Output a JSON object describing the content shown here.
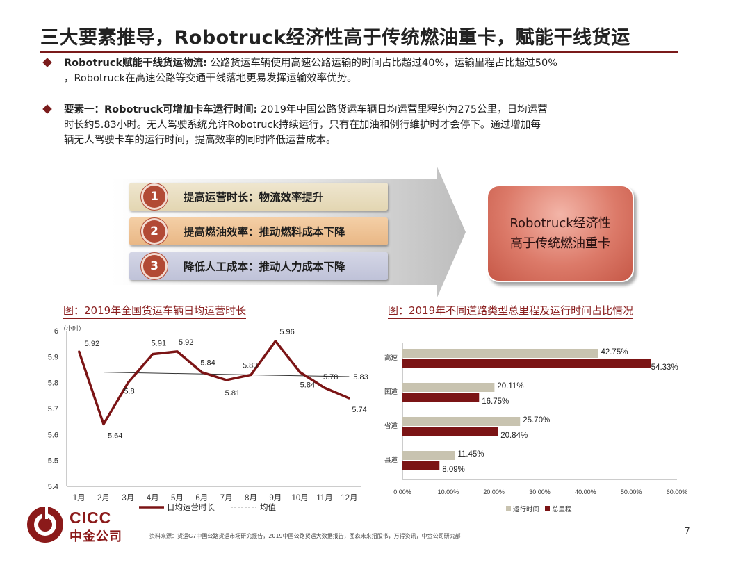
{
  "title": "三大要素推导，Robotruck经济性高于传统燃油重卡，赋能干线货运",
  "bullets": [
    {
      "lead": "Robotruck赋能干线货运物流:",
      "text_line1": " 公路货运车辆使用高速公路运输的时间占比超过40%，运输里程占比超过50%",
      "text_line2": "，Robotruck在高速公路等交通干线落地更易发挥运输效率优势。"
    },
    {
      "lead": "要素一：Robotruck可增加卡车运行时间:",
      "text_line1": " 2019年中国公路货运车辆日均运营里程约为275公里，日均运营",
      "text_line2": "时长约5.83小时。无人驾驶系统允许Robotruck持续运行，只有在加油和例行维护时才会停下。通过增加每",
      "text_line3": "辆无人驾驶卡车的运行时间，提高效率的同时降低运营成本。"
    }
  ],
  "factors": [
    {
      "num": "1",
      "label": "提高运营时长：物流效率提升"
    },
    {
      "num": "2",
      "label": "提高燃油效率：推动燃料成本下降"
    },
    {
      "num": "3",
      "label": "降低人工成本：推动人力成本下降"
    }
  ],
  "result": {
    "line1": "Robotruck经济性",
    "line2": "高于传统燃油重卡"
  },
  "left_chart_title": "图：2019年全国货运车辆日均运营时长",
  "right_chart_title": "图：2019年不同道路类型总里程及运行时间占比情况",
  "chart_data": [
    {
      "type": "line",
      "unit_label": "（小时）",
      "categories": [
        "1月",
        "2月",
        "3月",
        "4月",
        "5月",
        "6月",
        "7月",
        "8月",
        "9月",
        "10月",
        "11月",
        "12月"
      ],
      "series": [
        {
          "name": "日均运营时长",
          "color": "#7b1415",
          "values": [
            5.92,
            5.64,
            5.8,
            5.91,
            5.92,
            5.84,
            5.81,
            5.83,
            5.96,
            5.84,
            5.78,
            5.74
          ]
        },
        {
          "name": "均值",
          "color": "#a0a0a0",
          "values": [
            5.83,
            5.83,
            5.83,
            5.83,
            5.83,
            5.83,
            5.83,
            5.83,
            5.83,
            5.83,
            5.83,
            5.83
          ]
        }
      ],
      "trend_label": "5.83",
      "ylim": [
        5.4,
        6.0
      ],
      "yticks": [
        "5.4",
        "5.5",
        "5.6",
        "5.7",
        "5.8",
        "5.9",
        "6"
      ],
      "data_labels": [
        "5.92",
        "5.64",
        "5.8",
        "5.91",
        "5.92",
        "5.84",
        "5.81",
        "5.83",
        "5.96",
        "5.84",
        "5.78",
        "5.74"
      ]
    },
    {
      "type": "bar",
      "orientation": "horizontal",
      "categories": [
        "高速",
        "国道",
        "省道",
        "县道"
      ],
      "series": [
        {
          "name": "运行时间",
          "color": "#c8c3b0",
          "values": [
            42.75,
            20.11,
            25.7,
            11.45
          ],
          "labels": [
            "42.75%",
            "20.11%",
            "25.70%",
            "11.45%"
          ]
        },
        {
          "name": "总里程",
          "color": "#7b1415",
          "values": [
            54.33,
            16.75,
            20.84,
            8.09
          ],
          "labels": [
            "54.33%",
            "16.75%",
            "20.84%",
            "8.09%"
          ]
        }
      ],
      "xlim": [
        0,
        60
      ],
      "xticks": [
        "0.00%",
        "10.00%",
        "20.00%",
        "30.00%",
        "40.00%",
        "50.00%",
        "60.00%"
      ]
    }
  ],
  "logo": {
    "en": "CICC",
    "cn": "中金公司"
  },
  "source": "资料来源：货运G7中国公路货运市场研究报告，2019中国公路货运大数据报告，图森未来招股书，万得资讯，中金公司研究部",
  "page_number": "7",
  "colors": {
    "brand": "#8b1a1a",
    "dark_red": "#7b1415",
    "beige": "#c8c3b0"
  }
}
